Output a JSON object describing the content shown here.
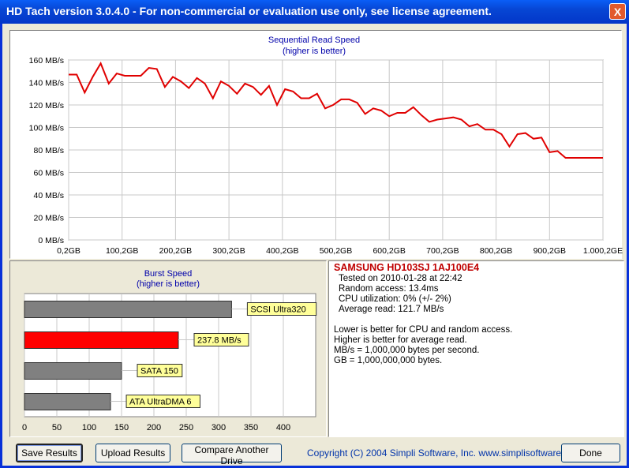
{
  "window": {
    "title": "HD Tach version 3.0.4.0  - For non-commercial or evaluation use only, see license agreement.",
    "close_label": "X"
  },
  "seq_chart": {
    "title": "Sequential Read Speed",
    "subtitle": "(higher is better)"
  },
  "burst_chart": {
    "title": "Burst Speed",
    "subtitle": "(higher is better)"
  },
  "chart_data": [
    {
      "type": "line",
      "title": "Sequential Read Speed",
      "subtitle": "(higher is better)",
      "ylim": [
        0,
        160
      ],
      "xlim": [
        0,
        1000
      ],
      "y_ticks": [
        "0 MB/s",
        "20 MB/s",
        "40 MB/s",
        "60 MB/s",
        "80 MB/s",
        "100 MB/s",
        "120 MB/s",
        "140 MB/s",
        "160 MB/s"
      ],
      "x_ticks": [
        "0,2GB",
        "100,2GB",
        "200,2GB",
        "300,2GB",
        "400,2GB",
        "500,2GB",
        "600,2GB",
        "700,2GB",
        "800,2GB",
        "900,2GB",
        "1.000,2GE"
      ],
      "grid": true,
      "color": "#e00000",
      "x": [
        0,
        15,
        30,
        45,
        60,
        75,
        90,
        105,
        120,
        135,
        150,
        165,
        180,
        195,
        210,
        225,
        240,
        255,
        270,
        285,
        300,
        315,
        330,
        345,
        360,
        375,
        390,
        405,
        420,
        435,
        450,
        465,
        480,
        495,
        510,
        525,
        540,
        555,
        570,
        585,
        600,
        615,
        630,
        645,
        660,
        675,
        690,
        705,
        720,
        735,
        750,
        765,
        780,
        795,
        810,
        825,
        840,
        855,
        870,
        885,
        900,
        915,
        930,
        945,
        960,
        975,
        990,
        1000
      ],
      "y": [
        147,
        147,
        131,
        145,
        157,
        139,
        148,
        146,
        146,
        146,
        153,
        152,
        136,
        145,
        141,
        135,
        144,
        139,
        126,
        141,
        137,
        130,
        139,
        136,
        129,
        137,
        120,
        134,
        132,
        126,
        126,
        130,
        117,
        120,
        125,
        125,
        122,
        112,
        117,
        115,
        110,
        113,
        113,
        118,
        111,
        105,
        107,
        108,
        109,
        107,
        101,
        103,
        98,
        98,
        94,
        83,
        94,
        95,
        90,
        91,
        78,
        79,
        73,
        73,
        73,
        73,
        73,
        73
      ],
      "xlabel": "",
      "ylabel": ""
    },
    {
      "type": "bar",
      "orientation": "horizontal",
      "title": "Burst Speed",
      "subtitle": "(higher is better)",
      "xlim": [
        0,
        450
      ],
      "x_ticks": [
        0,
        50,
        100,
        150,
        200,
        250,
        300,
        350,
        400
      ],
      "grid": true,
      "categories": [
        "SCSI Ultra320",
        "237.8 MB/s",
        "SATA 150",
        "ATA UltraDMA 6"
      ],
      "values": [
        320,
        237.8,
        150,
        133
      ],
      "colors": [
        "#808080",
        "#ff0000",
        "#808080",
        "#808080"
      ]
    }
  ],
  "info": {
    "drive": "SAMSUNG HD103SJ 1AJ100E4",
    "tested_on": "Tested on 2010-01-28 at 22:42",
    "random_access": "Random access: 13.4ms",
    "cpu": "CPU utilization: 0% (+/- 2%)",
    "avg_read": "Average read: 121.7 MB/s",
    "note1": "Lower is better for CPU and random access.",
    "note2": "Higher is better for average read.",
    "note3": "MB/s = 1,000,000 bytes per second.",
    "note4": "GB = 1,000,000,000 bytes."
  },
  "buttons": {
    "save": "Save Results",
    "upload": "Upload Results",
    "compare": "Compare Another Drive",
    "done": "Done"
  },
  "copyright": "Copyright (C) 2004 Simpli Software, Inc. www.simplisoftware.com"
}
